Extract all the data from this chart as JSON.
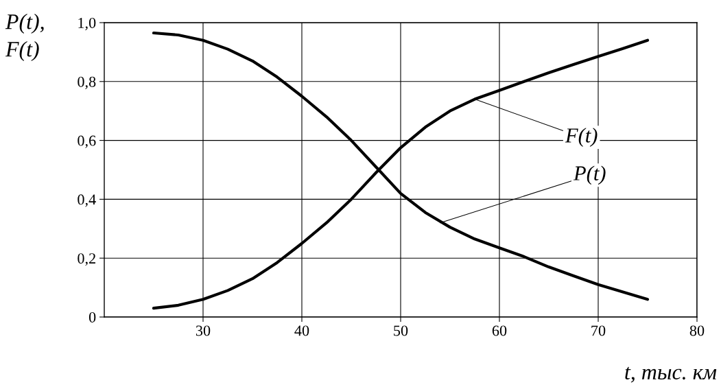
{
  "chart_data": {
    "type": "line",
    "ylabel": "P(t),\nF(t)",
    "xlabel": "t, тыс. км",
    "series": [
      {
        "color": "#000000",
        "x": [
          25,
          27.5,
          30,
          32.5,
          35,
          37.5,
          40,
          42.5,
          45,
          47.5,
          50,
          52.5,
          55,
          57.5,
          60,
          62.5,
          65,
          67.5,
          70,
          72.5,
          75
        ],
        "values": [
          0.965,
          0.958,
          0.94,
          0.91,
          0.87,
          0.815,
          0.75,
          0.68,
          0.6,
          0.51,
          0.42,
          0.355,
          0.305,
          0.265,
          0.235,
          0.205,
          0.17,
          0.14,
          0.11,
          0.085,
          0.06
        ]
      },
      {
        "color": "#000000",
        "x": [
          25,
          27.5,
          30,
          32.5,
          35,
          37.5,
          40,
          42.5,
          45,
          47.5,
          50,
          52.5,
          55,
          57.5,
          60,
          62.5,
          65,
          67.5,
          70,
          72.5,
          75
        ],
        "values": [
          0.03,
          0.04,
          0.06,
          0.09,
          0.13,
          0.185,
          0.25,
          0.32,
          0.4,
          0.49,
          0.575,
          0.645,
          0.7,
          0.74,
          0.77,
          0.8,
          0.83,
          0.858,
          0.885,
          0.912,
          0.94
        ]
      }
    ],
    "annotations": [
      {
        "text": "F(t)",
        "x": 57.5,
        "y": 0.74
      },
      {
        "text": "P(t)",
        "x": 54,
        "y": 0.32
      }
    ],
    "xlim": [
      20,
      80
    ],
    "xticks": [
      30,
      40,
      50,
      60,
      70,
      80
    ],
    "ylim": [
      0,
      1
    ],
    "yticks": [
      0,
      {
        "value": 0.2,
        "label": "0,2"
      },
      {
        "value": 0.4,
        "label": "0,4"
      },
      {
        "value": 0.6,
        "label": "0,6"
      },
      {
        "value": 0.8,
        "label": "0,8"
      },
      {
        "value": 1,
        "label": "1,0"
      }
    ],
    "grid": true,
    "legend": false,
    "marker": "none",
    "line_style": "solid"
  }
}
